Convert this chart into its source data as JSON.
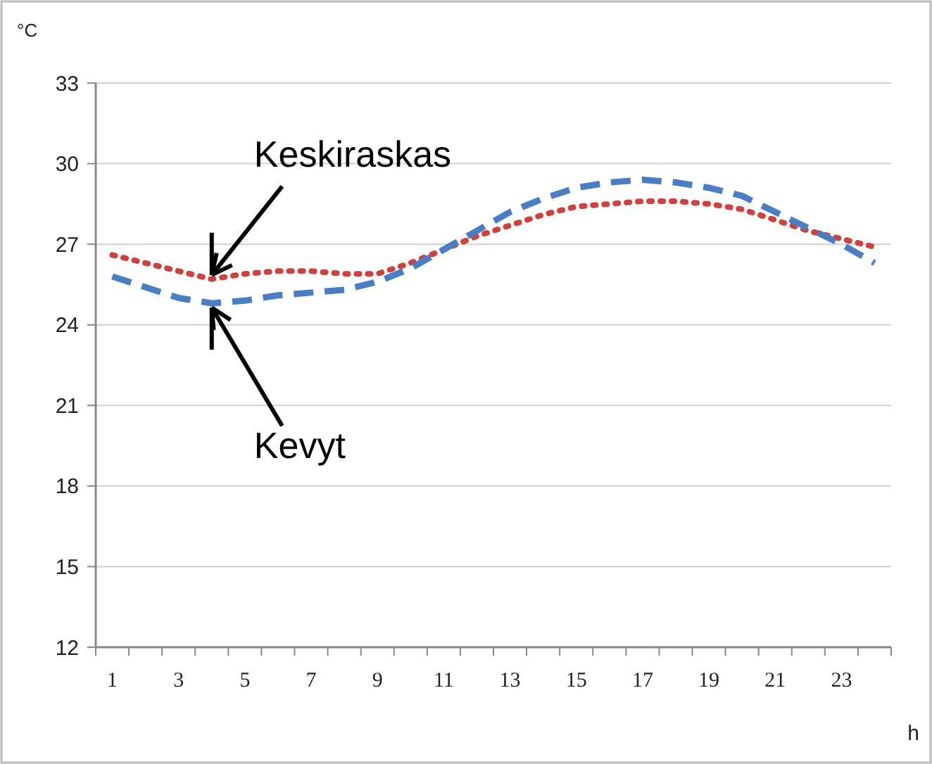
{
  "chart_data": {
    "type": "line",
    "xlabel": "h",
    "ylabel": "°C",
    "x": [
      1,
      2,
      3,
      4,
      5,
      6,
      7,
      8,
      9,
      10,
      11,
      12,
      13,
      14,
      15,
      16,
      17,
      18,
      19,
      20,
      21,
      22,
      23,
      24
    ],
    "xlim": [
      0.5,
      24.5
    ],
    "xticks": [
      1,
      3,
      5,
      7,
      9,
      11,
      13,
      15,
      17,
      19,
      21,
      23,
      {
        "value": 0.5,
        "label": null
      },
      {
        "value": 1.5,
        "label": null
      },
      {
        "value": 2.5,
        "label": null
      },
      {
        "value": 3.5,
        "label": null
      },
      {
        "value": 4.5,
        "label": null
      },
      {
        "value": 5.5,
        "label": null
      },
      {
        "value": 6.5,
        "label": null
      },
      {
        "value": 7.5,
        "label": null
      },
      {
        "value": 8.5,
        "label": null
      },
      {
        "value": 9.5,
        "label": null
      },
      {
        "value": 10.5,
        "label": null
      },
      {
        "value": 11.5,
        "label": null
      },
      {
        "value": 12.5,
        "label": null
      },
      {
        "value": 13.5,
        "label": null
      },
      {
        "value": 14.5,
        "label": null
      },
      {
        "value": 15.5,
        "label": null
      },
      {
        "value": 16.5,
        "label": null
      },
      {
        "value": 17.5,
        "label": null
      },
      {
        "value": 18.5,
        "label": null
      },
      {
        "value": 19.5,
        "label": null
      },
      {
        "value": 20.5,
        "label": null
      },
      {
        "value": 21.5,
        "label": null
      },
      {
        "value": 22.5,
        "label": null
      },
      {
        "value": 23.5,
        "label": null
      },
      {
        "value": 24.5,
        "label": null
      }
    ],
    "series": [
      {
        "name": "Keskiraskas",
        "color": "#d0413e",
        "line_style": "dotted",
        "values": [
          26.6,
          26.3,
          26.0,
          25.7,
          25.9,
          26.0,
          26.0,
          25.9,
          25.9,
          26.3,
          26.8,
          27.3,
          27.7,
          28.1,
          28.4,
          28.5,
          28.6,
          28.6,
          28.5,
          28.3,
          27.9,
          27.5,
          27.2,
          26.9
        ]
      },
      {
        "name": "Kevyt",
        "color": "#4a7ec4",
        "line_style": "dashed",
        "values": [
          25.8,
          25.4,
          25.0,
          24.8,
          24.9,
          25.1,
          25.2,
          25.3,
          25.6,
          26.1,
          26.8,
          27.5,
          28.2,
          28.7,
          29.1,
          29.3,
          29.4,
          29.3,
          29.1,
          28.8,
          28.2,
          27.6,
          27.0,
          26.3
        ]
      }
    ],
    "ylim": [
      12,
      33
    ],
    "yticks": [
      12,
      15,
      18,
      21,
      24,
      27,
      30,
      33
    ],
    "grid": "y",
    "marker": "none"
  }
}
